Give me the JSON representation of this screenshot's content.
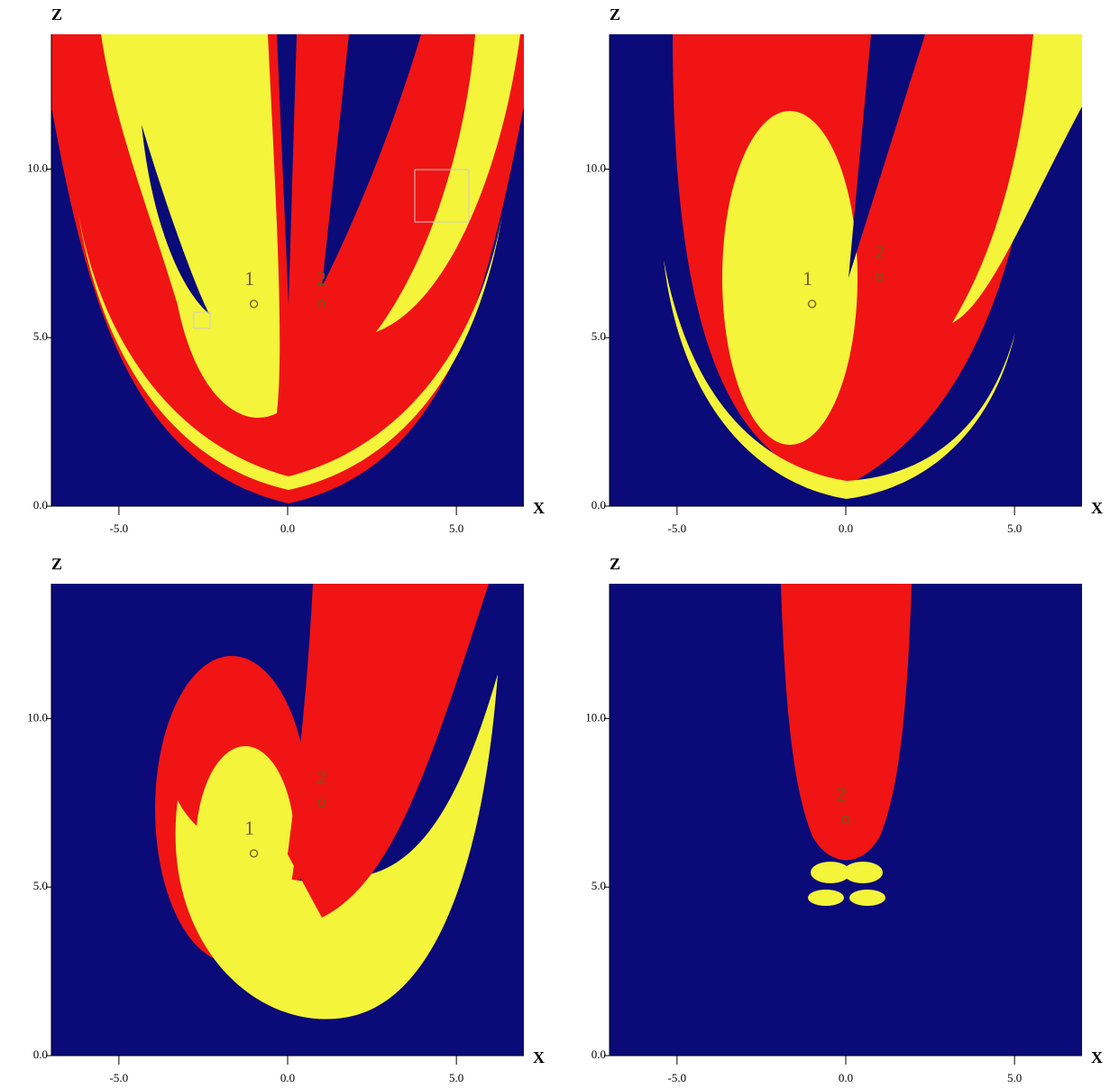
{
  "chart_data": [
    {
      "type": "scatter",
      "ylabel": "Z",
      "xlabel": "X",
      "xlim": [
        -7,
        7
      ],
      "ylim": [
        0,
        14
      ],
      "xticks": [
        {
          "value": -5,
          "label": "-5.0"
        },
        {
          "value": 0,
          "label": "0.0"
        },
        {
          "value": 5,
          "label": "5.0"
        }
      ],
      "yticks": [
        {
          "value": 0,
          "label": "0.0"
        },
        {
          "value": 5,
          "label": "5.0"
        },
        {
          "value": 10,
          "label": "10.0"
        }
      ],
      "series": [
        {
          "name": "1",
          "x": [
            -1
          ],
          "values": [
            6
          ]
        },
        {
          "name": "2",
          "x": [
            1
          ],
          "values": [
            6
          ]
        }
      ]
    },
    {
      "type": "scatter",
      "ylabel": "Z",
      "xlabel": "X",
      "xlim": [
        -7,
        7
      ],
      "ylim": [
        0,
        14
      ],
      "xticks": [
        {
          "value": -5,
          "label": "-5.0"
        },
        {
          "value": 0,
          "label": "0.0"
        },
        {
          "value": 5,
          "label": "5.0"
        }
      ],
      "yticks": [
        {
          "value": 0,
          "label": "0.0"
        },
        {
          "value": 5,
          "label": "5.0"
        },
        {
          "value": 10,
          "label": "10.0"
        }
      ],
      "series": [
        {
          "name": "1",
          "x": [
            -1
          ],
          "values": [
            6
          ]
        },
        {
          "name": "2",
          "x": [
            1
          ],
          "values": [
            6.8
          ]
        }
      ]
    },
    {
      "type": "scatter",
      "ylabel": "Z",
      "xlabel": "X",
      "xlim": [
        -7,
        7
      ],
      "ylim": [
        0,
        14
      ],
      "xticks": [
        {
          "value": -5,
          "label": "-5.0"
        },
        {
          "value": 0,
          "label": "0.0"
        },
        {
          "value": 5,
          "label": "5.0"
        }
      ],
      "yticks": [
        {
          "value": 0,
          "label": "0.0"
        },
        {
          "value": 5,
          "label": "5.0"
        },
        {
          "value": 10,
          "label": "10.0"
        }
      ],
      "series": [
        {
          "name": "1",
          "x": [
            -1
          ],
          "values": [
            6
          ]
        },
        {
          "name": "2",
          "x": [
            1
          ],
          "values": [
            7.5
          ]
        }
      ]
    },
    {
      "type": "scatter",
      "ylabel": "Z",
      "xlabel": "X",
      "xlim": [
        -7,
        7
      ],
      "ylim": [
        0,
        14
      ],
      "xticks": [
        {
          "value": -5,
          "label": "-5.0"
        },
        {
          "value": 0,
          "label": "0.0"
        },
        {
          "value": 5,
          "label": "5.0"
        }
      ],
      "yticks": [
        {
          "value": 0,
          "label": "0.0"
        },
        {
          "value": 5,
          "label": "5.0"
        },
        {
          "value": 10,
          "label": "10.0"
        }
      ],
      "series": [
        {
          "name": "2",
          "x": [
            0
          ],
          "values": [
            7
          ]
        }
      ]
    }
  ]
}
